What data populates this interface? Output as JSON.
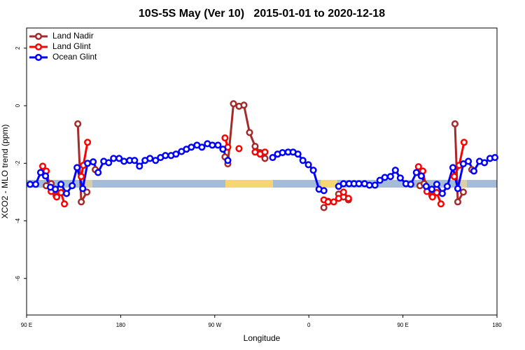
{
  "chart_data": {
    "type": "line",
    "title": "10S-5S May (Ver 10)   2015-01-01 to 2020-12-18",
    "xlabel": "Longitude",
    "ylabel": "XCO2 - MLO trend (ppm)",
    "xlim": [
      90,
      540
    ],
    "ylim": [
      -7.27,
      2.7
    ],
    "xticks": [
      {
        "value": 90,
        "label": "90 E"
      },
      180,
      {
        "value": 270,
        "label": "90 W"
      },
      {
        "value": 360,
        "label": "0"
      },
      {
        "value": 450,
        "label": "90 E"
      },
      {
        "value": 540,
        "label": "180"
      }
    ],
    "yticks": [
      2,
      0,
      -2,
      -4,
      -6
    ],
    "legend": "top-left",
    "series": [
      {
        "name": "Land Nadir",
        "color": "#a52a2a",
        "x": [
          108.8,
          113.5,
          118.2,
          123.5,
          null,
          139.0,
          142.3,
          147.7,
          null,
          155.7,
          null,
          279.8,
          282.5,
          287.9,
          293.2,
          297.9,
          303.3,
          308.6,
          313.4,
          318.0,
          null,
          374.4,
          378.4,
          null,
          388.5,
          393.2,
          397.9,
          null,
          466.3,
          470.3,
          477.7,
          482.4,
          null,
          499.8,
          502.5,
          507.8,
          null,
          515.9
        ],
        "values": [
          -2.78,
          -2.71,
          -3.12,
          -3.02,
          null,
          -0.63,
          -3.34,
          -3.0,
          null,
          -2.22,
          null,
          -1.78,
          -2.02,
          0.07,
          -0.02,
          0.02,
          -0.93,
          -1.41,
          -1.63,
          -1.83,
          null,
          -3.54,
          -3.32,
          null,
          -3.07,
          -3.17,
          -3.27,
          null,
          -2.78,
          -2.71,
          -3.12,
          -3.02,
          null,
          -0.63,
          -3.34,
          -3.0,
          null,
          -2.22
        ]
      },
      {
        "name": "Land Glint",
        "color": "#ff0000",
        "x": [
          105.4,
          108.8,
          113.5,
          118.8,
          122.9,
          126.2,
          null,
          142.3,
          144.3,
          148.3,
          null,
          279.8,
          282.5,
          null,
          293.2,
          null,
          308.6,
          313.4,
          318.0,
          null,
          374.4,
          378.4,
          383.8,
          388.5,
          393.2,
          397.9,
          null,
          464.9,
          469.0,
          473.0,
          478.3,
          482.4,
          486.4,
          null,
          499.1,
          503.8,
          508.5
        ],
        "values": [
          -2.1,
          -2.27,
          -2.98,
          -3.17,
          -3.02,
          -3.41,
          null,
          -2.46,
          -2.07,
          -1.27,
          null,
          -1.12,
          -1.44,
          null,
          -1.49,
          null,
          -1.61,
          -1.68,
          -1.61,
          null,
          -3.27,
          -3.34,
          -3.34,
          -3.22,
          -3.0,
          -3.22,
          null,
          -2.12,
          -2.27,
          -2.98,
          -3.17,
          -3.02,
          -3.41,
          null,
          -2.46,
          -2.07,
          -1.27
        ]
      },
      {
        "name": "Ocean Glint",
        "color": "#0000ff",
        "x": [
          93.4,
          98.7,
          103.4,
          108.1,
          112.8,
          117.5,
          122.9,
          128.2,
          133.6,
          138.3,
          143.7,
          148.3,
          153.7,
          158.4,
          163.8,
          168.5,
          173.2,
          178.5,
          183.2,
          188.6,
          193.3,
          198.0,
          203.3,
          208.0,
          213.4,
          218.1,
          222.8,
          228.2,
          232.9,
          238.2,
          242.9,
          247.6,
          253.0,
          257.7,
          263.0,
          267.7,
          273.1,
          277.8,
          282.5,
          null,
          325.4,
          330.1,
          334.8,
          340.2,
          344.9,
          349.6,
          354.3,
          359.6,
          364.3,
          369.7,
          374.4,
          null,
          388.5,
          393.2,
          398.5,
          403.2,
          407.9,
          413.3,
          418.0,
          423.3,
          428.0,
          432.7,
          438.1,
          442.8,
          447.5,
          452.9,
          457.5,
          462.9,
          467.6,
          472.3,
          477.7,
          482.4,
          487.7,
          492.4,
          497.8,
          502.5,
          507.8,
          512.6,
          517.9,
          523.3,
          528.0,
          533.3,
          538.0
        ],
        "values": [
          -2.73,
          -2.73,
          -2.32,
          -2.44,
          -2.83,
          -2.9,
          -2.73,
          -3.05,
          -2.78,
          -2.15,
          -2.88,
          -2.0,
          -1.95,
          -2.32,
          -1.93,
          -1.98,
          -1.83,
          -1.83,
          -1.93,
          -1.9,
          -1.9,
          -2.1,
          -1.9,
          -1.83,
          -1.9,
          -1.8,
          -1.73,
          -1.73,
          -1.68,
          -1.59,
          -1.51,
          -1.44,
          -1.37,
          -1.44,
          -1.32,
          -1.37,
          -1.37,
          -1.51,
          -1.9,
          null,
          -1.8,
          -1.68,
          -1.63,
          -1.61,
          -1.61,
          -1.68,
          -1.9,
          -2.05,
          -2.24,
          -2.9,
          -2.95,
          null,
          -2.8,
          -2.71,
          -2.71,
          -2.71,
          -2.71,
          -2.71,
          -2.76,
          -2.76,
          -2.59,
          -2.49,
          -2.46,
          -2.24,
          -2.51,
          -2.71,
          -2.73,
          -2.32,
          -2.44,
          -2.8,
          -2.9,
          -2.73,
          -3.05,
          -2.8,
          -2.15,
          -2.88,
          -2.02,
          -1.93,
          -2.27,
          -1.93,
          -1.98,
          -1.83,
          -1.8
        ]
      }
    ]
  }
}
